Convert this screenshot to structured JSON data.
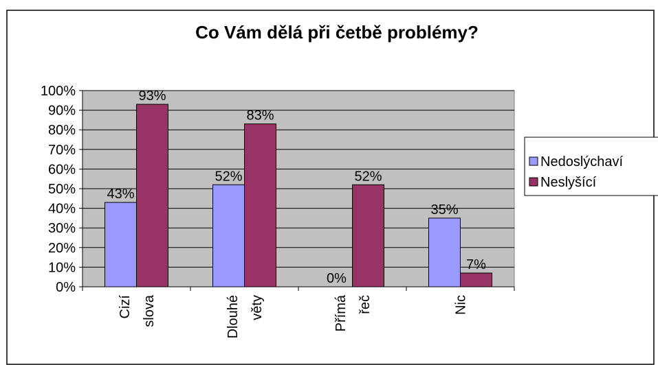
{
  "chart_data": {
    "type": "bar",
    "title": "Co Vám dělá při četbě problémy?",
    "categories": [
      "Cizí slova",
      "Dlouhé věty",
      "Přímá řeč",
      "Nic"
    ],
    "series": [
      {
        "name": "Nedoslýchaví",
        "color": "#9999ff",
        "values": [
          43,
          52,
          0,
          35
        ],
        "value_labels": [
          "43%",
          "52%",
          "0%",
          "35%"
        ]
      },
      {
        "name": "Neslyšící",
        "color": "#993366",
        "values": [
          93,
          83,
          52,
          7
        ],
        "value_labels": [
          "93%",
          "83%",
          "52%",
          "7%"
        ]
      }
    ],
    "ylim": [
      0,
      100
    ],
    "yticks": [
      {
        "value": 0,
        "label": "0%"
      },
      {
        "value": 10,
        "label": "10%"
      },
      {
        "value": 20,
        "label": "20%"
      },
      {
        "value": 30,
        "label": "30%"
      },
      {
        "value": 40,
        "label": "40%"
      },
      {
        "value": 50,
        "label": "50%"
      },
      {
        "value": 60,
        "label": "60%"
      },
      {
        "value": 70,
        "label": "70%"
      },
      {
        "value": 80,
        "label": "80%"
      },
      {
        "value": 90,
        "label": "90%"
      },
      {
        "value": 100,
        "label": "100%"
      }
    ],
    "grid": true,
    "legend": "right"
  }
}
